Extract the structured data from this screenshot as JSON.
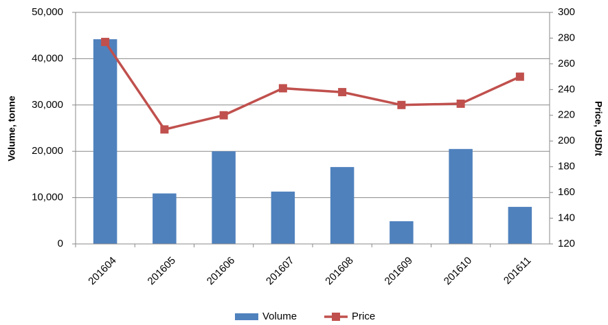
{
  "chart_data": {
    "type": "bar",
    "categories": [
      "201604",
      "201605",
      "201606",
      "201607",
      "201608",
      "201609",
      "201610",
      "201611"
    ],
    "series": [
      {
        "name": "Volume",
        "type": "bar",
        "color": "#4f81bd",
        "values": [
          44200,
          10900,
          20000,
          11300,
          16600,
          4900,
          20500,
          8000
        ]
      },
      {
        "name": "Price",
        "type": "line",
        "axis": "y2",
        "color": "#c0504d",
        "values": [
          277,
          209,
          220,
          241,
          238,
          228,
          229,
          250
        ]
      }
    ],
    "ylabel": "Volume, tonne",
    "y2label": "Price, USD/t",
    "ylim": [
      0,
      50000
    ],
    "yticks": [
      0,
      {
        "value": 10000,
        "label": "10,000"
      },
      {
        "value": 20000,
        "label": "20,000"
      },
      {
        "value": 30000,
        "label": "30,000"
      },
      {
        "value": 40000,
        "label": "40,000"
      },
      {
        "value": 50000,
        "label": "50,000"
      }
    ],
    "y2lim": [
      120,
      300
    ],
    "y2ticks": [
      120,
      140,
      160,
      180,
      200,
      220,
      240,
      260,
      280,
      300
    ],
    "grid": true,
    "legend": "bottom"
  }
}
